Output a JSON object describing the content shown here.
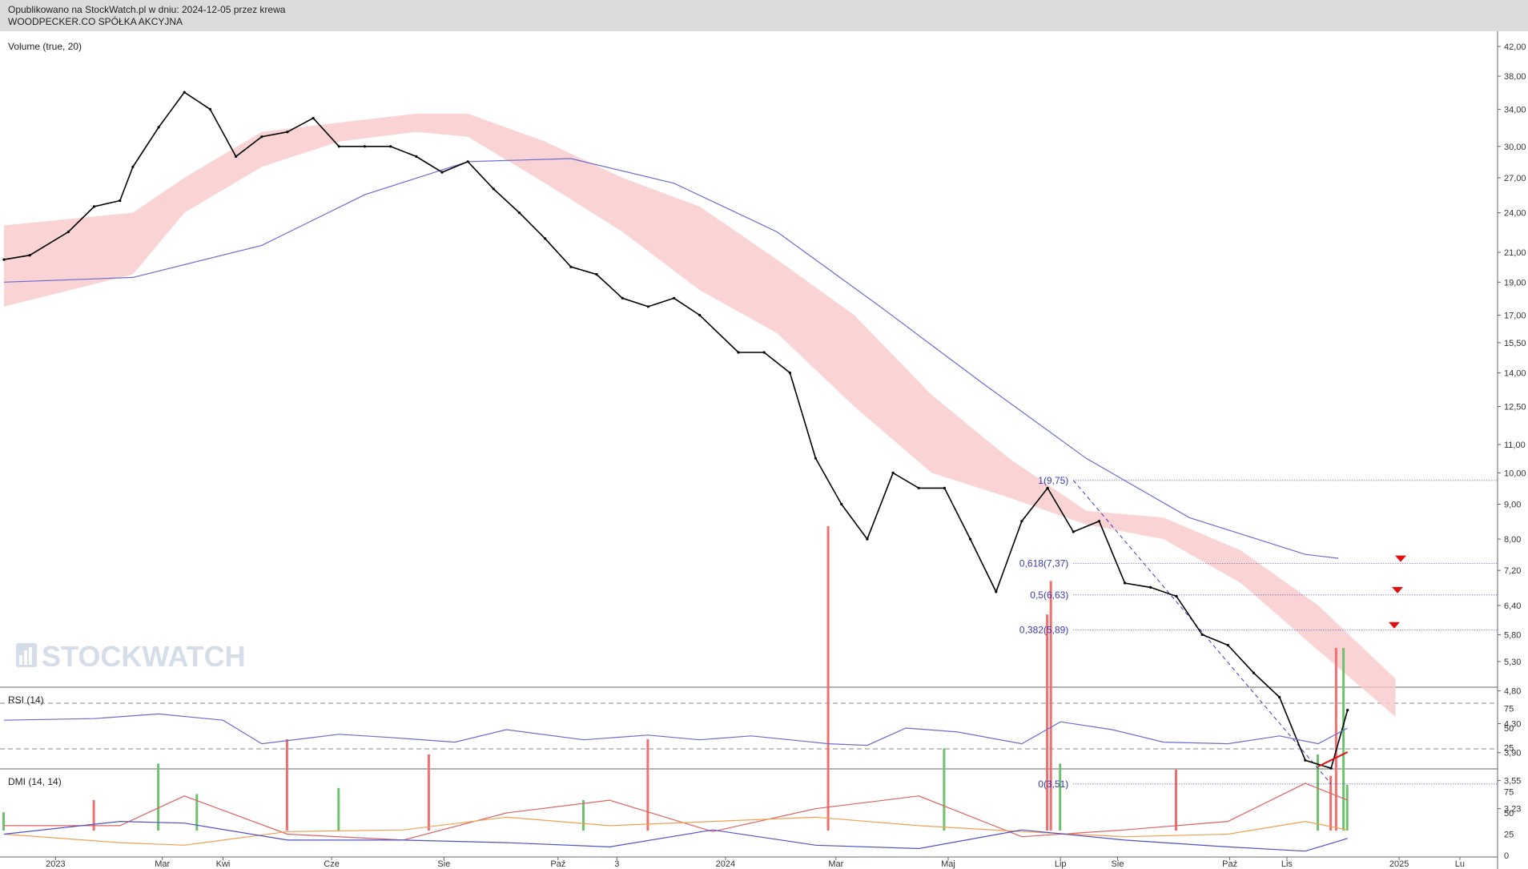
{
  "header": {
    "published": "Opublikowano na StockWatch.pl w dniu: 2024-12-05 przez krewa",
    "company": "WOODPECKER.CO SPÓŁKA AKCYJNA"
  },
  "watermark": "STOCKWATCH",
  "colors": {
    "price": "#000000",
    "sma": "#6b6bd0",
    "cloud_bear": "#f9c9cb",
    "cloud_bull": "#c9d9c9",
    "vol_up": "#6fc06f",
    "vol_down": "#f07070",
    "fib": "#3a3ab0",
    "rsi": "#6b6bd0",
    "dmi_adx": "#e06060",
    "dmi_plus": "#f0a050",
    "dmi_minus": "#5050c8",
    "marker": "#e01010"
  },
  "chart_data": [
    {
      "type": "line",
      "name": "price",
      "ylim": [
        3.0,
        42.0
      ],
      "yscale": "log",
      "x_tick_labels": [
        "2023",
        "Mar",
        "Kwi",
        "Cze",
        "Sie",
        "Paź",
        "3",
        "2024",
        "Mar",
        "Maj",
        "Lip",
        "Sie",
        "Paź",
        "Lis",
        "2025",
        "Lu"
      ],
      "y_tick_labels": [
        "42,00",
        "38,00",
        "34,00",
        "30,00",
        "27,00",
        "24,00",
        "21,00",
        "19,00",
        "17,00",
        "15,50",
        "14,00",
        "12,50",
        "11,00",
        "10,00",
        "9,00",
        "8,00",
        "7,20",
        "6,40",
        "5,80",
        "5,30",
        "4,80",
        "4,30",
        "3,90",
        "3,55",
        "3,23"
      ],
      "y_tick_values": [
        42,
        38,
        34,
        30,
        27,
        24,
        21,
        19,
        17,
        15.5,
        14,
        12.5,
        11,
        10,
        9,
        8,
        7.2,
        6.4,
        5.8,
        5.3,
        4.8,
        4.3,
        3.9,
        3.55,
        3.23
      ],
      "x": [
        "2022-12-05",
        "2022-12-19",
        "2023-01-09",
        "2023-01-23",
        "2023-02-06",
        "2023-02-13",
        "2023-02-27",
        "2023-03-13",
        "2023-03-27",
        "2023-04-10",
        "2023-04-24",
        "2023-05-08",
        "2023-05-22",
        "2023-06-05",
        "2023-06-19",
        "2023-07-03",
        "2023-07-17",
        "2023-07-31",
        "2023-08-14",
        "2023-08-28",
        "2023-09-11",
        "2023-09-25",
        "2023-10-09",
        "2023-10-23",
        "2023-11-06",
        "2023-11-20",
        "2023-12-04",
        "2023-12-18",
        "2024-01-08",
        "2024-01-22",
        "2024-02-05",
        "2024-02-19",
        "2024-03-04",
        "2024-03-18",
        "2024-04-01",
        "2024-04-15",
        "2024-04-29",
        "2024-05-13",
        "2024-05-27",
        "2024-06-10",
        "2024-06-24",
        "2024-07-08",
        "2024-07-22",
        "2024-08-05",
        "2024-08-19",
        "2024-09-02",
        "2024-09-16",
        "2024-09-30",
        "2024-10-14",
        "2024-10-28",
        "2024-11-11",
        "2024-11-25",
        "2024-12-04"
      ],
      "values": [
        20.5,
        20.8,
        22.5,
        24.5,
        25.0,
        28.0,
        32.0,
        36.0,
        34.0,
        29.0,
        31.0,
        31.5,
        33.0,
        30.0,
        30.0,
        30.0,
        29.0,
        27.5,
        28.5,
        26.0,
        24.0,
        22.0,
        20.0,
        19.5,
        18.0,
        17.5,
        18.0,
        17.0,
        15.0,
        15.0,
        14.0,
        10.5,
        9.0,
        8.0,
        10.0,
        9.5,
        9.5,
        8.0,
        6.7,
        8.5,
        9.5,
        8.2,
        8.5,
        6.9,
        6.8,
        6.6,
        5.8,
        5.6,
        5.1,
        4.7,
        3.8,
        3.7,
        4.5
      ]
    },
    {
      "type": "line",
      "name": "sma",
      "x": [
        "2022-12-05",
        "2023-02-13",
        "2023-04-24",
        "2023-06-19",
        "2023-08-14",
        "2023-10-09",
        "2023-12-04",
        "2024-01-29",
        "2024-03-25",
        "2024-05-20",
        "2024-07-15",
        "2024-09-09",
        "2024-11-11",
        "2024-11-29"
      ],
      "values": [
        19.0,
        19.3,
        21.5,
        25.5,
        28.5,
        28.8,
        26.5,
        22.5,
        17.5,
        13.5,
        10.5,
        8.6,
        7.6,
        7.5
      ]
    },
    {
      "type": "area",
      "name": "cloud",
      "x": [
        "2022-12-05",
        "2023-02-13",
        "2023-03-13",
        "2023-04-24",
        "2023-06-05",
        "2023-07-17",
        "2023-08-14",
        "2023-09-25",
        "2023-11-06",
        "2023-12-18",
        "2024-01-29",
        "2024-03-11",
        "2024-04-22",
        "2024-06-03",
        "2024-07-15",
        "2024-08-26",
        "2024-10-07",
        "2024-11-18",
        "2024-12-30"
      ],
      "upper": [
        23.0,
        24.0,
        27.0,
        31.5,
        32.5,
        33.5,
        33.5,
        30.5,
        27.0,
        24.5,
        20.5,
        17.0,
        13.0,
        10.5,
        8.8,
        8.6,
        7.7,
        6.4,
        5.0
      ],
      "lower": [
        17.5,
        19.5,
        24.0,
        28.0,
        30.5,
        31.5,
        31.0,
        26.5,
        22.5,
        18.5,
        16.0,
        12.5,
        10.0,
        9.2,
        8.4,
        8.0,
        6.9,
        5.5,
        4.4
      ]
    },
    {
      "type": "fibonacci",
      "levels": [
        {
          "label": "1(9,75)",
          "value": 9.75
        },
        {
          "label": "0,618(7,37)",
          "value": 7.37
        },
        {
          "label": "0,5(6,63)",
          "value": 6.63
        },
        {
          "label": "0,382(5,89)",
          "value": 5.89
        },
        {
          "label": "0(3,51)",
          "value": 3.51
        }
      ]
    },
    {
      "type": "bar",
      "name": "volume",
      "title": "Volume (true, 20)",
      "ylim": [
        0,
        100
      ],
      "x": [
        "2022-12-05",
        "2023-01-23",
        "2023-02-27",
        "2023-03-20",
        "2023-05-08",
        "2023-06-05",
        "2023-07-24",
        "2023-10-16",
        "2023-11-20",
        "2024-02-26",
        "2024-04-29",
        "2024-06-24",
        "2024-06-26",
        "2024-07-01",
        "2024-09-02",
        "2024-11-18",
        "2024-11-25",
        "2024-11-28",
        "2024-12-02",
        "2024-12-04"
      ],
      "values": [
        6,
        10,
        22,
        12,
        30,
        14,
        25,
        10,
        30,
        100,
        27,
        71,
        82,
        22,
        20,
        25,
        18,
        60,
        60,
        15
      ],
      "up": [
        true,
        false,
        true,
        true,
        false,
        true,
        false,
        true,
        false,
        false,
        true,
        false,
        false,
        true,
        false,
        true,
        false,
        false,
        true,
        true
      ]
    },
    {
      "type": "line",
      "name": "rsi",
      "title": "RSI (14)",
      "ylim": [
        0,
        100
      ],
      "y_tick_labels": [
        "75",
        "50",
        "25"
      ],
      "y_tick_values": [
        75,
        50,
        25
      ],
      "x": [
        "2022-12-05",
        "2023-01-23",
        "2023-02-27",
        "2023-04-03",
        "2023-04-24",
        "2023-06-05",
        "2023-07-03",
        "2023-08-07",
        "2023-09-04",
        "2023-10-16",
        "2023-11-20",
        "2023-12-18",
        "2024-01-15",
        "2024-02-26",
        "2024-03-18",
        "2024-04-08",
        "2024-05-06",
        "2024-06-10",
        "2024-07-01",
        "2024-07-29",
        "2024-08-26",
        "2024-09-30",
        "2024-10-28",
        "2024-11-18",
        "2024-12-04"
      ],
      "values": [
        60,
        62,
        68,
        60,
        30,
        42,
        38,
        32,
        48,
        35,
        41,
        35,
        40,
        30,
        28,
        50,
        45,
        30,
        58,
        48,
        32,
        30,
        40,
        30,
        50
      ]
    },
    {
      "type": "line",
      "name": "dmi",
      "title": "DMI (14, 14)",
      "ylim": [
        0,
        100
      ],
      "y_tick_labels": [
        "75",
        "50",
        "25",
        "0"
      ],
      "y_tick_values": [
        75,
        50,
        25,
        0
      ],
      "x": [
        "2022-12-05",
        "2023-02-06",
        "2023-03-13",
        "2023-05-08",
        "2023-07-10",
        "2023-09-04",
        "2023-10-30",
        "2023-12-25",
        "2024-02-19",
        "2024-04-15",
        "2024-06-10",
        "2024-08-05",
        "2024-09-30",
        "2024-11-11",
        "2024-12-04"
      ],
      "series": [
        {
          "name": "ADX",
          "values": [
            35,
            35,
            70,
            25,
            18,
            50,
            65,
            28,
            55,
            70,
            22,
            30,
            40,
            85,
            65
          ]
        },
        {
          "name": "+DI",
          "values": [
            25,
            15,
            12,
            28,
            30,
            45,
            35,
            40,
            45,
            35,
            28,
            22,
            25,
            40,
            30
          ]
        },
        {
          "name": "-DI",
          "values": [
            25,
            40,
            38,
            18,
            18,
            15,
            10,
            30,
            12,
            8,
            30,
            18,
            10,
            5,
            20
          ]
        }
      ]
    }
  ]
}
